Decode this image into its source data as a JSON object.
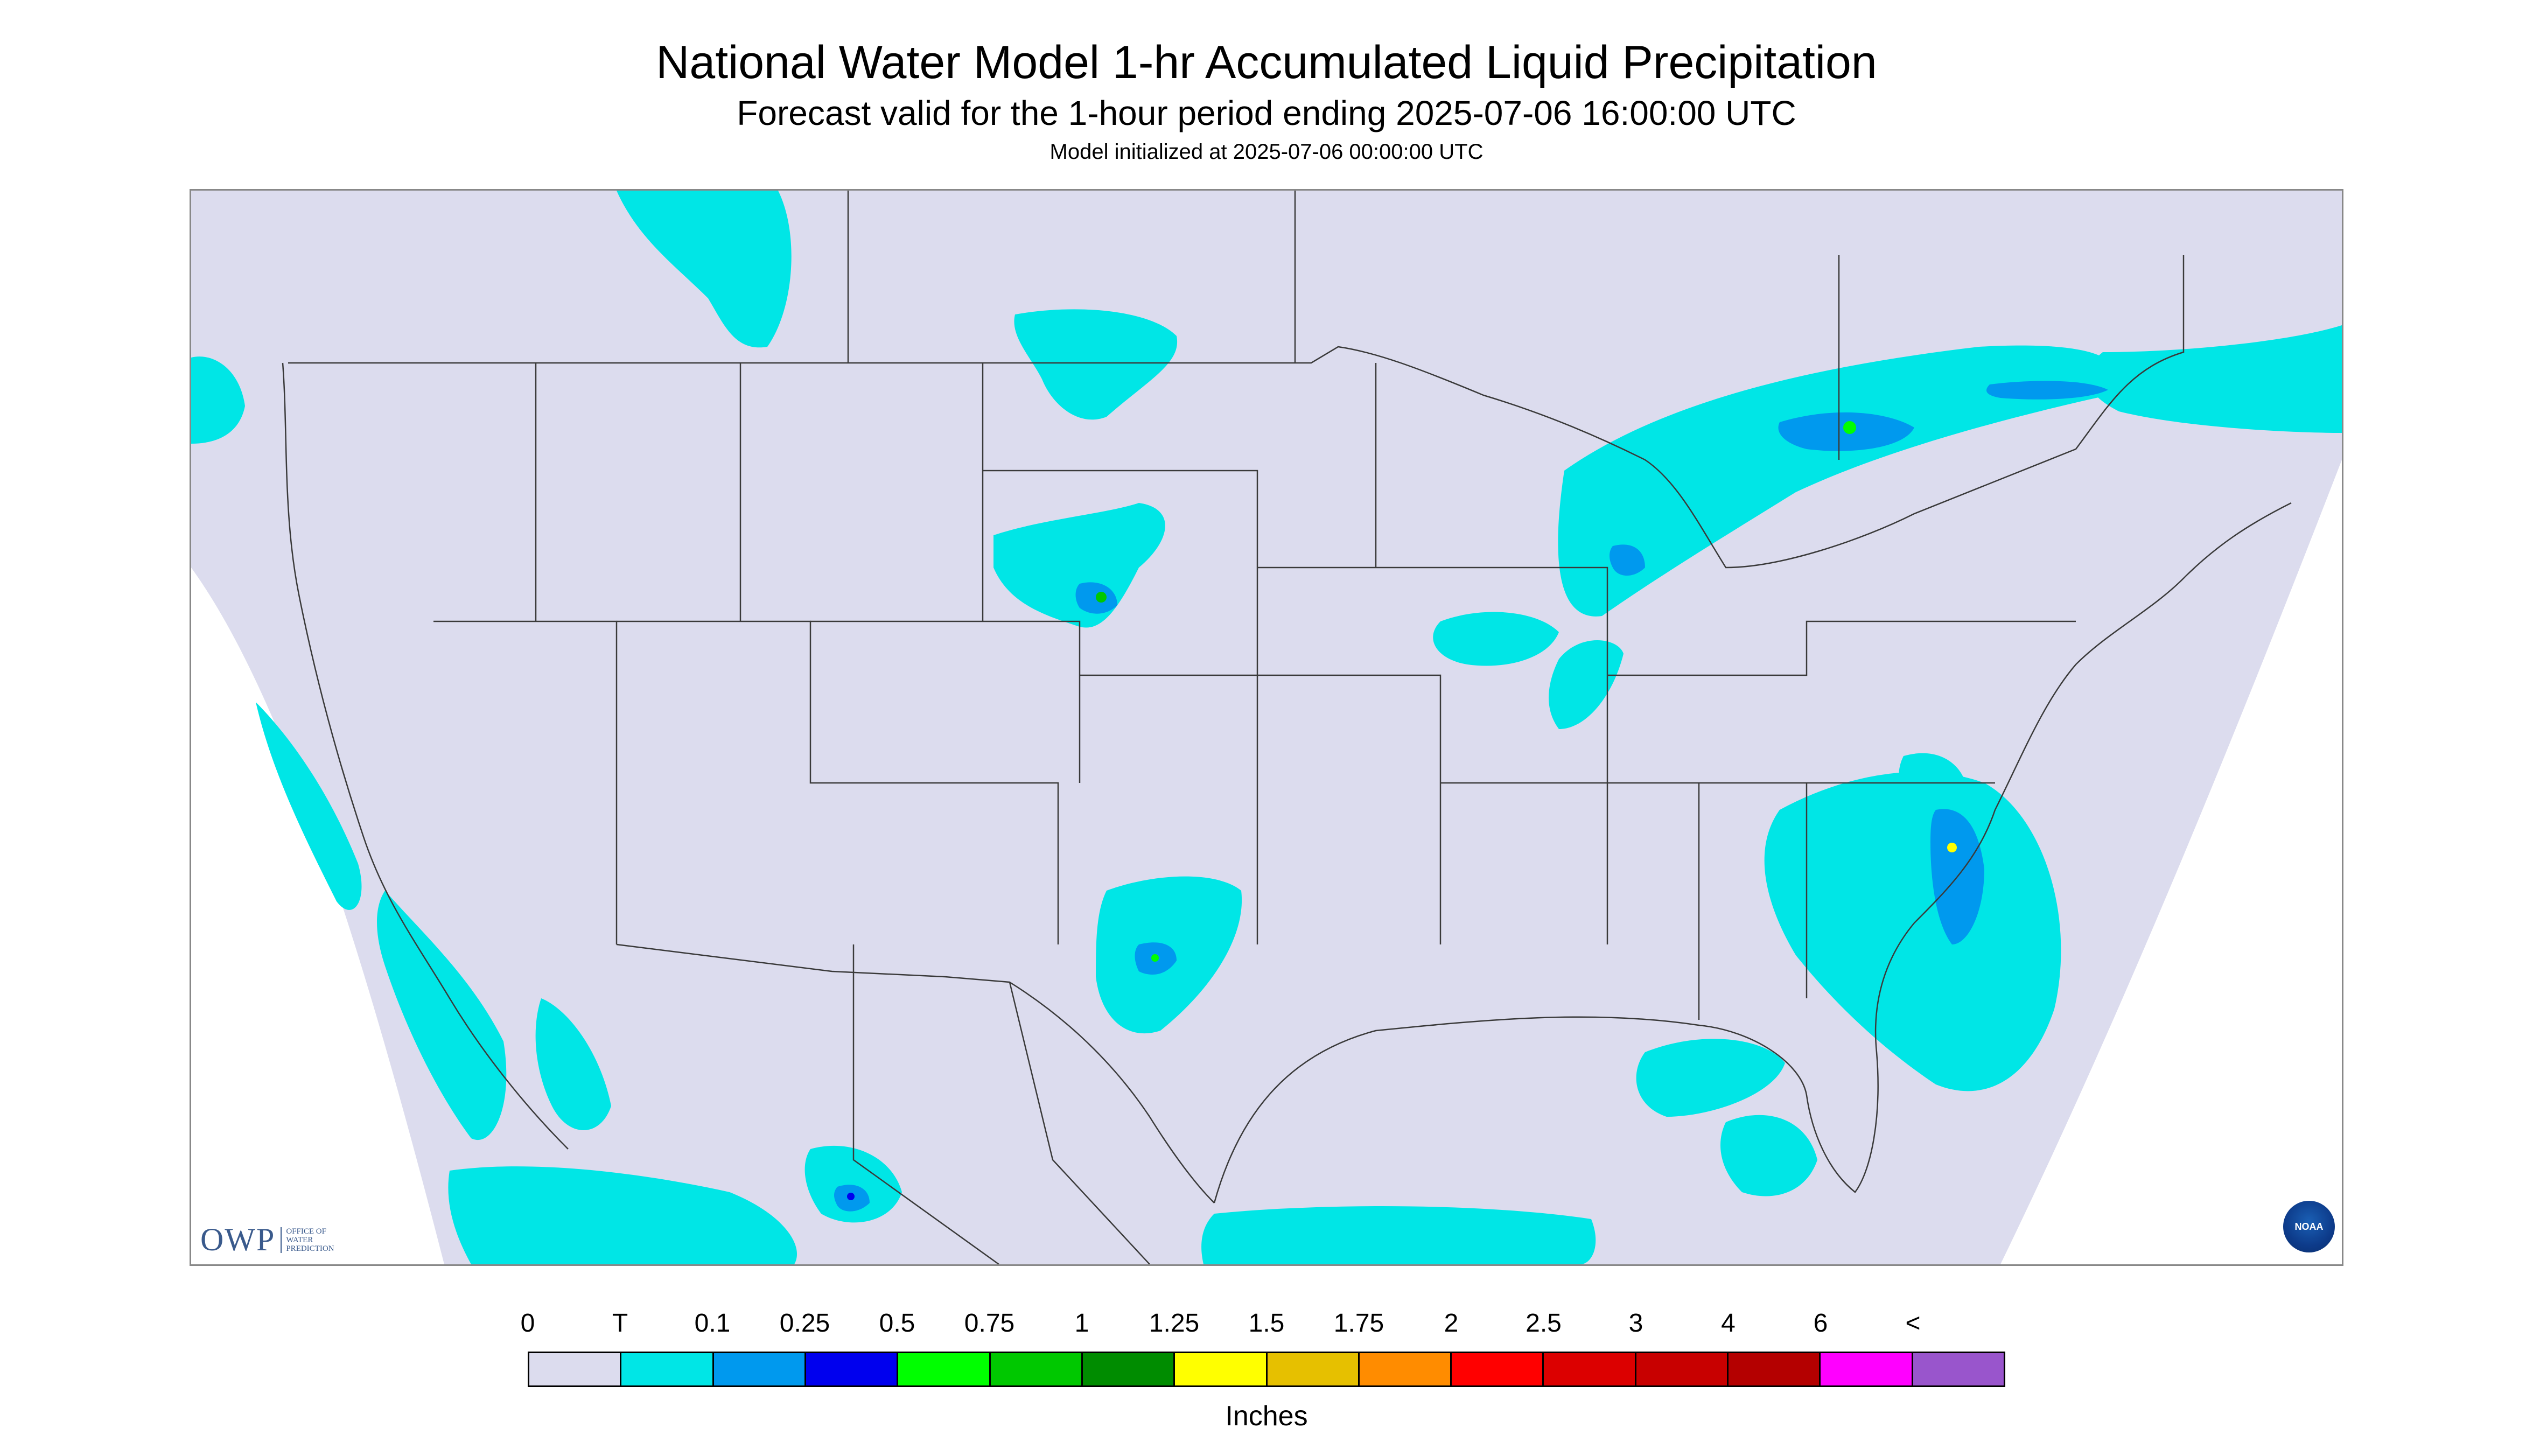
{
  "header": {
    "title": "National Water Model 1-hr Accumulated Liquid Precipitation",
    "subtitle": "Forecast valid for the 1-hour period ending 2025-07-06 16:00:00 UTC",
    "init": "Model initialized at 2025-07-06 00:00:00 UTC"
  },
  "logos": {
    "owp_text": "OWP",
    "owp_sub": [
      "OFFICE OF",
      "WATER",
      "PREDICTION"
    ],
    "noaa_text": "NOAA"
  },
  "map": {
    "background_color": "#dcdcee",
    "outside_color": "#ffffff",
    "border_color": "#3a3a3a"
  },
  "legend": {
    "labels": [
      "0",
      "T",
      "0.1",
      "0.25",
      "0.5",
      "0.75",
      "1",
      "1.25",
      "1.5",
      "1.75",
      "2",
      "2.5",
      "3",
      "4",
      "6",
      "<"
    ],
    "colors": [
      "#dcdcee",
      "#00e6e6",
      "#0099ee",
      "#0000ee",
      "#00ff00",
      "#00c800",
      "#008c00",
      "#ffff00",
      "#e6c000",
      "#ff8c00",
      "#ff0000",
      "#dc0000",
      "#c80000",
      "#b40000",
      "#ff00ff",
      "#9955cc"
    ],
    "unit": "Inches"
  }
}
